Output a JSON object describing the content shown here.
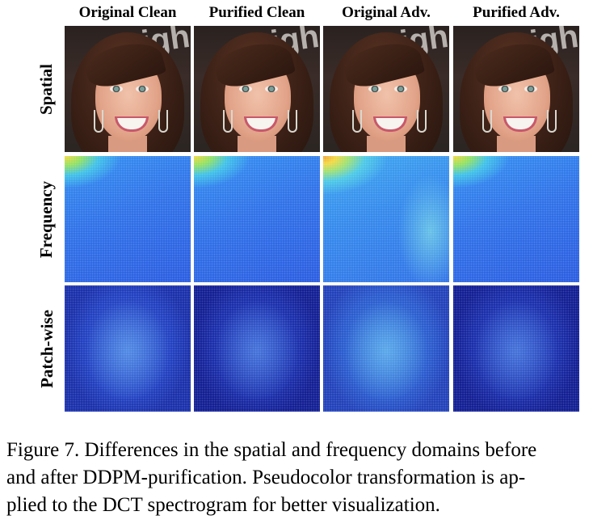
{
  "columns": [
    "Original Clean",
    "Purified Clean",
    "Original Adv.",
    "Purified Adv."
  ],
  "rows": [
    "Spatial",
    "Frequency",
    "Patch-wise"
  ],
  "spatial_bg_text": "ighi",
  "caption_lines": [
    "Figure 7. Differences in the spatial and frequency domains before",
    "and after DDPM-purification.  Pseudocolor transformation is ap-",
    "plied to the DCT spectrogram for better visualization."
  ]
}
